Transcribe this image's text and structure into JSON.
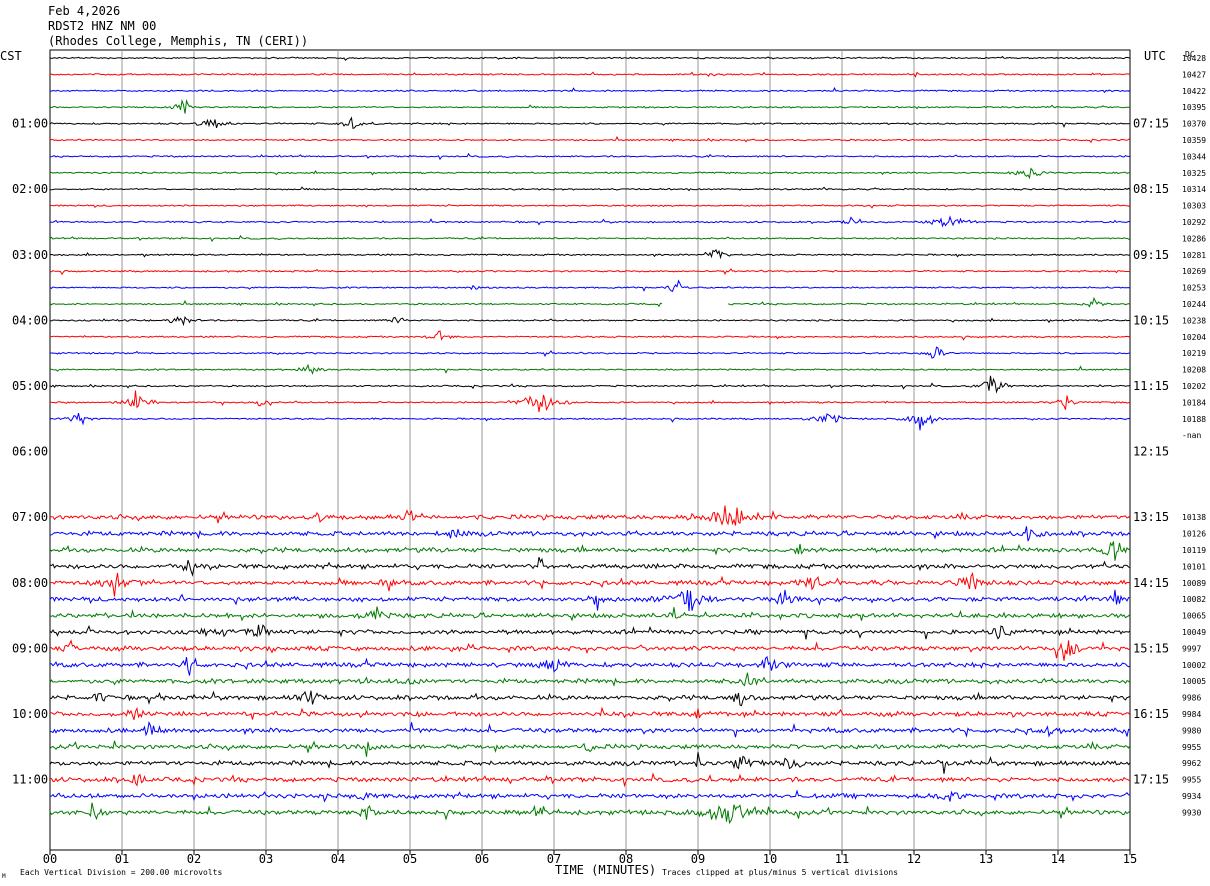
{
  "header": {
    "date": "Feb 4,2026",
    "station": "RDST2 HNZ NM 00",
    "location": "(Rhodes College, Memphis, TN (CERI))"
  },
  "left_zone": "CST",
  "right_zone": "UTC",
  "dc_label": "DC",
  "footer": {
    "scale_note": "Each Vertical Division =  200.00 microvolts",
    "clip_note": "Traces clipped at plus/minus 5 vertical divisions",
    "corner_mark": "M"
  },
  "colors": {
    "black": "#000000",
    "red": "#ff0000",
    "blue": "#0000ff",
    "green": "#007a00",
    "grid": "#9a9a9a"
  },
  "chart_data": {
    "type": "line",
    "title": "",
    "xlabel": "TIME (MINUTES)",
    "ylabel": "",
    "xlim": [
      0,
      15
    ],
    "x_ticks": [
      "00",
      "01",
      "02",
      "03",
      "04",
      "05",
      "06",
      "07",
      "08",
      "09",
      "10",
      "11",
      "12",
      "13",
      "14",
      "15"
    ],
    "rows_per_hour": 4,
    "row_minutes": 15,
    "hour_labels_left": [
      "01:00",
      "02:00",
      "03:00",
      "04:00",
      "05:00",
      "06:00",
      "07:00",
      "08:00",
      "09:00",
      "10:00",
      "11:00"
    ],
    "hour_labels_right": [
      "07:15",
      "08:15",
      "09:15",
      "10:15",
      "11:15",
      "12:15",
      "13:15",
      "14:15",
      "15:15",
      "16:15",
      "17:15"
    ],
    "color_cycle": [
      "black",
      "red",
      "blue",
      "green"
    ],
    "traces": [
      {
        "row": 0,
        "color": "black",
        "dc": "10428",
        "events": []
      },
      {
        "row": 1,
        "color": "red",
        "dc": "10427",
        "events": []
      },
      {
        "row": 2,
        "color": "blue",
        "dc": "10422",
        "events": []
      },
      {
        "row": 3,
        "color": "green",
        "dc": "10395",
        "events": [
          [
            1.85,
            0.1,
            9
          ]
        ]
      },
      {
        "row": 4,
        "color": "black",
        "dc": "10370",
        "events": [
          [
            2.25,
            0.15,
            8
          ],
          [
            4.2,
            0.15,
            7
          ]
        ]
      },
      {
        "row": 5,
        "color": "red",
        "dc": "10359",
        "events": []
      },
      {
        "row": 6,
        "color": "blue",
        "dc": "10344",
        "events": []
      },
      {
        "row": 7,
        "color": "green",
        "dc": "10325",
        "events": [
          [
            13.6,
            0.15,
            8
          ]
        ]
      },
      {
        "row": 8,
        "color": "black",
        "dc": "10314",
        "events": []
      },
      {
        "row": 9,
        "color": "red",
        "dc": "10303",
        "events": []
      },
      {
        "row": 10,
        "color": "blue",
        "dc": "10292",
        "events": [
          [
            11.1,
            0.1,
            6
          ],
          [
            12.5,
            0.2,
            7
          ]
        ]
      },
      {
        "row": 11,
        "color": "green",
        "dc": "10286",
        "events": []
      },
      {
        "row": 12,
        "color": "black",
        "dc": "10281",
        "events": [
          [
            9.25,
            0.1,
            12
          ]
        ]
      },
      {
        "row": 13,
        "color": "red",
        "dc": "10269",
        "events": []
      },
      {
        "row": 14,
        "color": "blue",
        "dc": "10253",
        "events": [
          [
            8.7,
            0.1,
            8
          ],
          [
            5.9,
            0.05,
            5
          ]
        ]
      },
      {
        "row": 15,
        "color": "green",
        "dc": "10244",
        "events": [
          [
            14.5,
            0.1,
            6
          ]
        ],
        "gap": [
          8.5,
          9.4
        ]
      },
      {
        "row": 16,
        "color": "black",
        "dc": "10238",
        "events": [
          [
            1.8,
            0.12,
            8
          ],
          [
            4.8,
            0.1,
            6
          ]
        ]
      },
      {
        "row": 17,
        "color": "red",
        "dc": "10204",
        "events": [
          [
            5.4,
            0.12,
            7
          ]
        ]
      },
      {
        "row": 18,
        "color": "blue",
        "dc": "10219",
        "events": [
          [
            12.3,
            0.1,
            10
          ]
        ]
      },
      {
        "row": 19,
        "color": "green",
        "dc": "10208",
        "events": [
          [
            3.6,
            0.1,
            7
          ]
        ]
      },
      {
        "row": 20,
        "color": "black",
        "dc": "10202",
        "events": [
          [
            13.1,
            0.12,
            12
          ]
        ]
      },
      {
        "row": 21,
        "color": "red",
        "dc": "10184",
        "events": [
          [
            1.2,
            0.15,
            14
          ],
          [
            6.8,
            0.2,
            16
          ],
          [
            2.9,
            0.08,
            6
          ],
          [
            14.1,
            0.1,
            7
          ]
        ]
      },
      {
        "row": 22,
        "color": "blue",
        "dc": "10188",
        "events": [
          [
            0.4,
            0.12,
            7
          ],
          [
            10.8,
            0.15,
            9
          ],
          [
            12.1,
            0.15,
            14
          ]
        ],
        "end": 15
      },
      {
        "row": 23,
        "color": "black",
        "dc": "-nan",
        "missing": true
      },
      {
        "row": 24,
        "color": "black",
        "missing": true
      },
      {
        "row": 25,
        "color": "red",
        "missing": true
      },
      {
        "row": 26,
        "color": "blue",
        "missing": true
      },
      {
        "row": 27,
        "color": "green",
        "missing": true
      },
      {
        "row": 28,
        "color": "red",
        "dc": "10138",
        "noisy": true,
        "events": [
          [
            9.45,
            0.3,
            16
          ],
          [
            3.7,
            0.08,
            8
          ],
          [
            5.0,
            0.08,
            8
          ]
        ]
      },
      {
        "row": 29,
        "color": "blue",
        "dc": "10126",
        "noisy": true,
        "events": [
          [
            5.6,
            0.1,
            8
          ],
          [
            13.6,
            0.12,
            9
          ]
        ]
      },
      {
        "row": 30,
        "color": "green",
        "dc": "10119",
        "noisy": true,
        "events": [
          [
            14.8,
            0.15,
            11
          ],
          [
            10.4,
            0.05,
            9
          ]
        ]
      },
      {
        "row": 31,
        "color": "black",
        "dc": "10101",
        "noisy": true,
        "events": [
          [
            1.9,
            0.1,
            8
          ],
          [
            6.8,
            0.08,
            7
          ]
        ]
      },
      {
        "row": 32,
        "color": "red",
        "dc": "10089",
        "noisy": true,
        "events": [
          [
            0.9,
            0.15,
            10
          ],
          [
            4.7,
            0.08,
            9
          ],
          [
            10.6,
            0.12,
            10
          ],
          [
            12.8,
            0.15,
            11
          ]
        ]
      },
      {
        "row": 33,
        "color": "blue",
        "dc": "10082",
        "noisy": true,
        "events": [
          [
            8.85,
            0.2,
            16
          ],
          [
            7.6,
            0.1,
            10
          ],
          [
            10.2,
            0.1,
            10
          ],
          [
            14.8,
            0.08,
            9
          ]
        ]
      },
      {
        "row": 34,
        "color": "green",
        "dc": "10065",
        "noisy": true,
        "events": [
          [
            4.5,
            0.12,
            8
          ],
          [
            8.7,
            0.1,
            9
          ]
        ]
      },
      {
        "row": 35,
        "color": "black",
        "dc": "10049",
        "noisy": true,
        "events": [
          [
            2.9,
            0.12,
            8
          ],
          [
            13.2,
            0.1,
            8
          ]
        ]
      },
      {
        "row": 36,
        "color": "red",
        "dc": "9997",
        "noisy": true,
        "events": [
          [
            14.1,
            0.15,
            10
          ],
          [
            0.3,
            0.05,
            8
          ],
          [
            3.1,
            0.05,
            7
          ]
        ]
      },
      {
        "row": 37,
        "color": "blue",
        "dc": "10002",
        "noisy": true,
        "events": [
          [
            7.0,
            0.12,
            9
          ],
          [
            10.0,
            0.12,
            9
          ],
          [
            1.9,
            0.06,
            7
          ]
        ]
      },
      {
        "row": 38,
        "color": "green",
        "dc": "10005",
        "noisy": true,
        "events": [
          [
            5.0,
            0.1,
            9
          ],
          [
            9.7,
            0.1,
            8
          ]
        ]
      },
      {
        "row": 39,
        "color": "black",
        "dc": "9986",
        "noisy": true,
        "events": [
          [
            3.6,
            0.1,
            9
          ],
          [
            0.7,
            0.08,
            7
          ],
          [
            9.6,
            0.1,
            8
          ]
        ]
      },
      {
        "row": 40,
        "color": "red",
        "dc": "9984",
        "noisy": true,
        "events": [
          [
            9.0,
            0.02,
            14
          ],
          [
            1.2,
            0.12,
            8
          ]
        ]
      },
      {
        "row": 41,
        "color": "blue",
        "dc": "9980",
        "noisy": true,
        "events": [
          [
            1.4,
            0.12,
            9
          ],
          [
            5.0,
            0.08,
            8
          ],
          [
            13.9,
            0.08,
            8
          ]
        ]
      },
      {
        "row": 42,
        "color": "green",
        "dc": "9955",
        "noisy": true,
        "events": [
          [
            7.5,
            0.06,
            8
          ],
          [
            4.4,
            0.06,
            7
          ]
        ]
      },
      {
        "row": 43,
        "color": "black",
        "dc": "9962",
        "noisy": true,
        "events": [
          [
            9.6,
            0.15,
            9
          ],
          [
            10.3,
            0.12,
            8
          ],
          [
            12.4,
            0.06,
            8
          ],
          [
            9.0,
            0.02,
            14
          ]
        ]
      },
      {
        "row": 44,
        "color": "red",
        "dc": "9955",
        "noisy": true,
        "events": [
          [
            1.2,
            0.08,
            7
          ]
        ]
      },
      {
        "row": 45,
        "color": "blue",
        "dc": "9934",
        "noisy": true,
        "events": [
          [
            12.5,
            0.1,
            8
          ],
          [
            4.3,
            0.06,
            7
          ]
        ]
      },
      {
        "row": 46,
        "color": "green",
        "dc": "9930",
        "noisy": true,
        "events": [
          [
            9.4,
            0.3,
            13
          ],
          [
            0.6,
            0.1,
            9
          ],
          [
            4.4,
            0.08,
            9
          ],
          [
            6.8,
            0.1,
            8
          ]
        ]
      }
    ]
  }
}
